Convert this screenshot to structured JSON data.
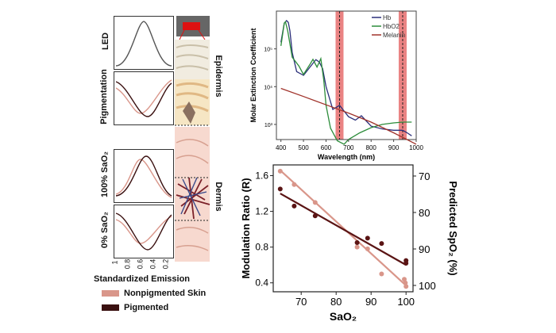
{
  "left_panel": {
    "row_labels": [
      "LED",
      "Pigmentation",
      "100% SaO₂",
      "0% SaO₂"
    ],
    "side_labels": [
      "Epidermis",
      "Dermis"
    ],
    "x_ticks": [
      "1",
      "0.8",
      "0.6",
      "0.4",
      "0.2"
    ],
    "x_label": "Standardized Emission",
    "legend": [
      {
        "label": "Nonpigmented Skin",
        "color": "#d9968a"
      },
      {
        "label": "Pigmented",
        "color": "#3a1010"
      }
    ]
  },
  "chart_data": [
    {
      "type": "line",
      "title": "",
      "xlabel": "Wavelength (nm)",
      "ylabel": "Molar Extinction Coefficient",
      "xlim": [
        380,
        1000
      ],
      "ylim_log10": [
        2.6,
        6.0
      ],
      "x_ticks": [
        "400",
        "500",
        "600",
        "700",
        "800",
        "900",
        "1000"
      ],
      "y_ticks": [
        "10³",
        "10⁴",
        "10⁵"
      ],
      "y_tick_values": [
        1000,
        10000,
        100000
      ],
      "log_scale_y": true,
      "highlight_bands_nm": [
        660,
        940
      ],
      "legend_position": "top-right",
      "series": [
        {
          "name": "Hb",
          "color": "#2b2f7a",
          "x": [
            400,
            415,
            425,
            433,
            440,
            450,
            470,
            500,
            540,
            555,
            570,
            585,
            600,
            630,
            660,
            700,
            730,
            757,
            770,
            800,
            850,
            900,
            940,
            960,
            980
          ],
          "y": [
            150000,
            480000,
            560000,
            500000,
            300000,
            80000,
            25000,
            20000,
            40000,
            52000,
            45000,
            30000,
            10000,
            2500,
            3200,
            1600,
            1300,
            1700,
            1400,
            900,
            760,
            700,
            700,
            600,
            500
          ]
        },
        {
          "name": "HbO2",
          "color": "#2c8c3a",
          "x": [
            400,
            415,
            420,
            430,
            450,
            480,
            500,
            530,
            542,
            560,
            577,
            590,
            600,
            620,
            650,
            680,
            700,
            750,
            800,
            850,
            900,
            940,
            960,
            980
          ],
          "y": [
            120000,
            480000,
            520000,
            300000,
            60000,
            35000,
            21000,
            40000,
            53000,
            33000,
            55000,
            15000,
            3200,
            800,
            370,
            300,
            400,
            600,
            820,
            1000,
            1100,
            1150,
            1150,
            1150
          ]
        },
        {
          "name": "Melanin",
          "color": "#a0322a",
          "x": [
            400,
            500,
            600,
            700,
            800,
            900,
            1000
          ],
          "y": [
            9000,
            5500,
            3300,
            2000,
            1150,
            600,
            300
          ]
        }
      ]
    },
    {
      "type": "scatter",
      "title": "",
      "xlabel": "SaO₂",
      "ylabel": "Modulation Ratio (R)",
      "ylabel_right": "Predicted SpO₂ (%)",
      "xlim": [
        62,
        102
      ],
      "ylim": [
        0.3,
        1.72
      ],
      "x_ticks": [
        "70",
        "80",
        "90",
        "100"
      ],
      "y_ticks": [
        "0.4",
        "0.8",
        "1.2",
        "1.6"
      ],
      "y_ticks_right": [
        "70",
        "80",
        "90",
        "100"
      ],
      "series": [
        {
          "name": "Nonpigmented Skin",
          "color": "#d9968a",
          "points": [
            [
              64,
              1.65
            ],
            [
              68,
              1.5
            ],
            [
              74,
              1.3
            ],
            [
              86,
              0.8
            ],
            [
              89,
              0.78
            ],
            [
              93,
              0.5
            ],
            [
              99.5,
              0.44
            ],
            [
              99.8,
              0.4
            ],
            [
              100,
              0.36
            ]
          ],
          "fit": [
            [
              64,
              1.66
            ],
            [
              100,
              0.37
            ]
          ]
        },
        {
          "name": "Pigmented",
          "color": "#5a1414",
          "points": [
            [
              64,
              1.45
            ],
            [
              68,
              1.26
            ],
            [
              74,
              1.15
            ],
            [
              86,
              0.85
            ],
            [
              89,
              0.9
            ],
            [
              93,
              0.84
            ],
            [
              100,
              0.62
            ],
            [
              100,
              0.65
            ]
          ],
          "fit": [
            [
              64,
              1.4
            ],
            [
              100,
              0.6
            ]
          ]
        }
      ]
    }
  ]
}
